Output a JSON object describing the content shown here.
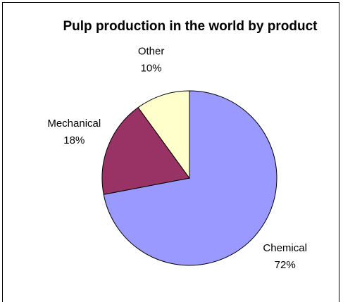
{
  "chart_data": {
    "type": "pie",
    "title": "Pulp production in the world by product",
    "categories": [
      "Chemical",
      "Mechanical",
      "Other"
    ],
    "values": [
      72,
      18,
      10
    ],
    "value_labels": [
      "72%",
      "18%",
      "10%"
    ],
    "colors": [
      "#9999ff",
      "#993366",
      "#ffffcc"
    ]
  }
}
